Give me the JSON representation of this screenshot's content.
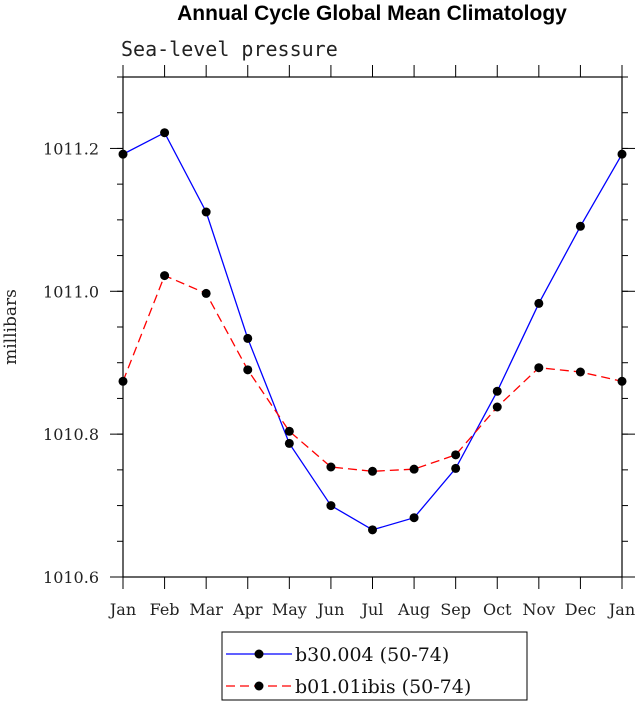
{
  "chart_data": {
    "type": "line",
    "title": "Annual Cycle Global Mean Climatology",
    "subtitle": "Sea-level pressure",
    "xlabel": "",
    "ylabel": "millibars",
    "categories": [
      "Jan",
      "Feb",
      "Mar",
      "Apr",
      "May",
      "Jun",
      "Jul",
      "Aug",
      "Sep",
      "Oct",
      "Nov",
      "Dec",
      "Jan"
    ],
    "ylim": [
      1010.6,
      1011.3
    ],
    "yticks": [
      1010.6,
      1010.8,
      1011.0,
      1011.2
    ],
    "ytick_labels": [
      "1010.6",
      "1010.8",
      "1011.0",
      "1011.2"
    ],
    "grid": false,
    "legend_position": "bottom-center",
    "series": [
      {
        "name": "b30.004 (50-74)",
        "color": "#0000ff",
        "dash": "solid",
        "values": [
          1011.192,
          1011.222,
          1011.111,
          1010.934,
          1010.787,
          1010.7,
          1010.666,
          1010.683,
          1010.752,
          1010.86,
          1010.983,
          1011.091,
          1011.192
        ]
      },
      {
        "name": "b01.01ibis (50-74)",
        "color": "#ff0000",
        "dash": "dashed",
        "values": [
          1010.874,
          1011.022,
          1010.997,
          1010.89,
          1010.804,
          1010.754,
          1010.748,
          1010.751,
          1010.771,
          1010.838,
          1010.893,
          1010.887,
          1010.874
        ]
      }
    ]
  }
}
